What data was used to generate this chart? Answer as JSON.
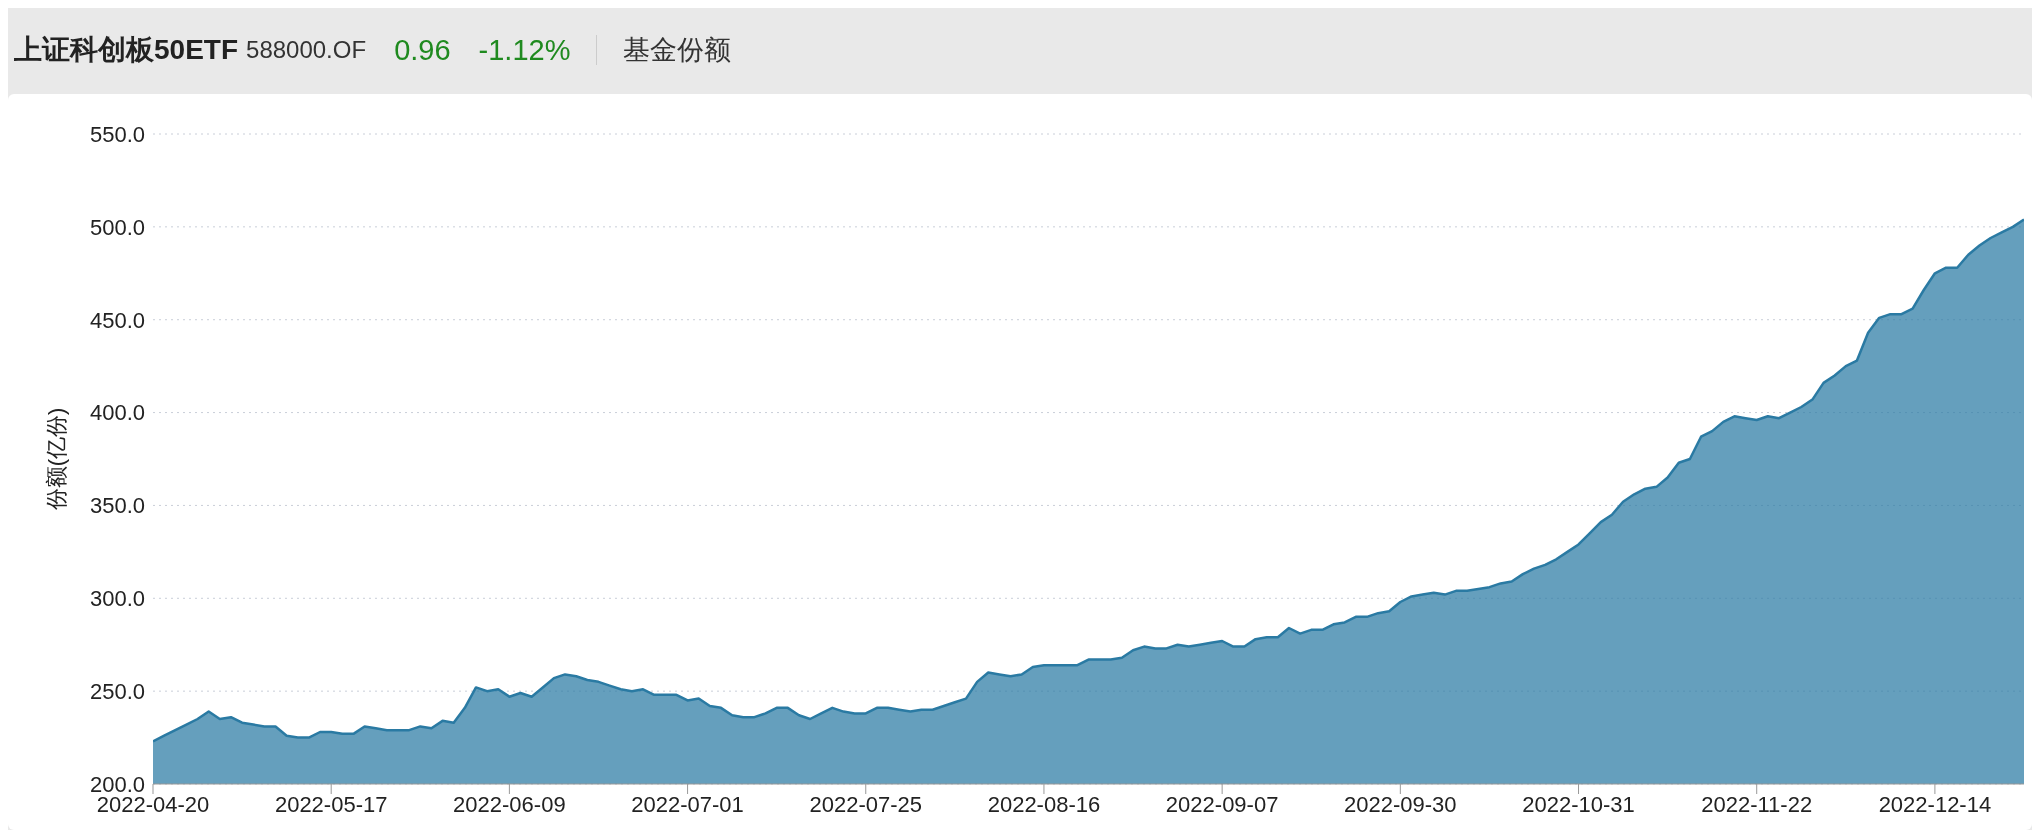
{
  "chart_data": {
    "type": "area",
    "title": "上证科创板50ETF",
    "subtitle": "588000.OF",
    "annotations": [
      "0.96",
      "-1.12%",
      "基金份额"
    ],
    "ylabel": "份额(亿份)",
    "categories": [
      "2022-04-20",
      null,
      null,
      null,
      null,
      null,
      null,
      null,
      null,
      null,
      null,
      null,
      null,
      null,
      null,
      null,
      "2022-05-17",
      null,
      null,
      null,
      null,
      null,
      null,
      null,
      null,
      null,
      null,
      null,
      null,
      null,
      null,
      null,
      "2022-06-09",
      null,
      null,
      null,
      null,
      null,
      null,
      null,
      null,
      null,
      null,
      null,
      null,
      null,
      null,
      null,
      "2022-07-01",
      null,
      null,
      null,
      null,
      null,
      null,
      null,
      null,
      null,
      null,
      null,
      null,
      null,
      null,
      null,
      "2022-07-25",
      null,
      null,
      null,
      null,
      null,
      null,
      null,
      null,
      null,
      null,
      null,
      null,
      null,
      null,
      null,
      "2022-08-16",
      null,
      null,
      null,
      null,
      null,
      null,
      null,
      null,
      null,
      null,
      null,
      null,
      null,
      null,
      null,
      "2022-09-07",
      null,
      null,
      null,
      null,
      null,
      null,
      null,
      null,
      null,
      null,
      null,
      null,
      null,
      null,
      null,
      "2022-09-30",
      null,
      null,
      null,
      null,
      null,
      null,
      null,
      null,
      null,
      null,
      null,
      null,
      null,
      null,
      null,
      "2022-10-31",
      null,
      null,
      null,
      null,
      null,
      null,
      null,
      null,
      null,
      null,
      null,
      null,
      null,
      null,
      null,
      "2022-11-22",
      null,
      null,
      null,
      null,
      null,
      null,
      null,
      null,
      null,
      null,
      null,
      null,
      null,
      null,
      null,
      "2022-12-14",
      null,
      null,
      null,
      null,
      null,
      null,
      null,
      null
    ],
    "series": [
      {
        "color": "#2a7aa3",
        "values": [
          223,
          226,
          229,
          232,
          235,
          239,
          235,
          236,
          233,
          232,
          231,
          231,
          226,
          225,
          225,
          228,
          228,
          227,
          227,
          231,
          230,
          229,
          229,
          229,
          231,
          230,
          234,
          233,
          241,
          252,
          250,
          251,
          247,
          249,
          247,
          252,
          257,
          259,
          258,
          256,
          255,
          253,
          251,
          250,
          251,
          248,
          248,
          248,
          245,
          246,
          242,
          241,
          237,
          236,
          236,
          238,
          241,
          241,
          237,
          235,
          238,
          241,
          239,
          238,
          238,
          241,
          241,
          240,
          239,
          240,
          240,
          242,
          244,
          246,
          255,
          260,
          259,
          258,
          259,
          263,
          264,
          264,
          264,
          264,
          267,
          267,
          267,
          268,
          272,
          274,
          273,
          273,
          275,
          274,
          275,
          276,
          277,
          274,
          274,
          278,
          279,
          279,
          284,
          281,
          283,
          283,
          286,
          287,
          290,
          290,
          292,
          293,
          298,
          301,
          302,
          303,
          302,
          304,
          304,
          305,
          306,
          308,
          309,
          313,
          316,
          318,
          321,
          325,
          329,
          335,
          341,
          345,
          352,
          356,
          359,
          360,
          365,
          373,
          375,
          387,
          390,
          395,
          398,
          397,
          396,
          398,
          397,
          400,
          403,
          407,
          416,
          420,
          425,
          428,
          443,
          451,
          453,
          453,
          456,
          466,
          475,
          478,
          478,
          485,
          490,
          494,
          497,
          500,
          504
        ]
      }
    ],
    "ylim": [
      200,
      550
    ],
    "yticks": [
      {
        "value": 200,
        "label": "200.0"
      },
      {
        "value": 250,
        "label": "250.0"
      },
      {
        "value": 300,
        "label": "300.0"
      },
      {
        "value": 350,
        "label": "350.0"
      },
      {
        "value": 400,
        "label": "400.0"
      },
      {
        "value": 450,
        "label": "450.0"
      },
      {
        "value": 500,
        "label": "500.0"
      },
      {
        "value": 550,
        "label": "550.0"
      }
    ],
    "grid": "y",
    "legend": false,
    "marker": "none",
    "line_style": "solid"
  }
}
